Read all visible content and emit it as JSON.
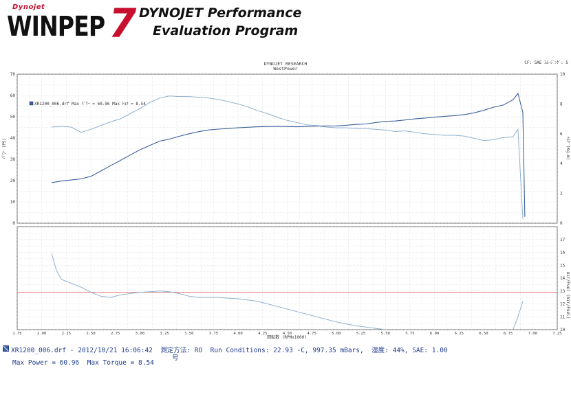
{
  "header": {
    "logo_top": "Dynojet",
    "logo_main": "WINPEP",
    "logo_number": "7",
    "title_line1": "DYNOJET Performance",
    "title_line2": "Evaluation Program"
  },
  "chart_header": {
    "title": "DYNOJET RESEARCH",
    "subtitle": "WestPower",
    "cf_label": "CF: SAE  ｽﾑｰｼﾞﾝｸﾞ: 5"
  },
  "legend": {
    "text": "XR1200_006.drf Max ﾊﾟﾜｰ = 60.96   Max ﾄﾙｸ = 8.54"
  },
  "colors": {
    "power": "#3b5f9a",
    "torque": "#8fb0d0",
    "afr": "#8fb0d0",
    "afr_target": "#e05050",
    "grid": "#d0d0d0",
    "axis": "#333333"
  },
  "chart_data": [
    {
      "type": "line",
      "title": "DYNOJET RESEARCH",
      "xlabel": "",
      "ylabel": "ﾊﾟﾜｰ (PS)",
      "y2label": "ﾄﾙｸ (Kg-m)",
      "xlim": [
        1.75,
        7.25
      ],
      "ylim": [
        0,
        70
      ],
      "y2lim": [
        0,
        10
      ],
      "yticks": [
        0,
        10,
        20,
        30,
        40,
        50,
        60,
        70
      ],
      "y2ticks": [
        0,
        2,
        4,
        6,
        8,
        10
      ],
      "grid": true,
      "legend_position": "top-left",
      "series": [
        {
          "name": "ﾊﾟﾜｰ",
          "axis": "left",
          "x": [
            2.1,
            2.2,
            2.3,
            2.4,
            2.5,
            2.6,
            2.7,
            2.8,
            2.9,
            3.0,
            3.1,
            3.2,
            3.3,
            3.4,
            3.5,
            3.6,
            3.7,
            3.8,
            3.9,
            4.0,
            4.2,
            4.4,
            4.6,
            4.8,
            5.0,
            5.1,
            5.2,
            5.3,
            5.4,
            5.5,
            5.6,
            5.7,
            5.8,
            5.9,
            6.0,
            6.1,
            6.2,
            6.3,
            6.4,
            6.5,
            6.6,
            6.7,
            6.8,
            6.85,
            6.9,
            6.92
          ],
          "values": [
            19,
            19.8,
            20.3,
            20.8,
            22,
            24.5,
            27,
            29.5,
            32,
            34.5,
            36.5,
            38.5,
            39.5,
            40.8,
            42,
            43,
            43.8,
            44.2,
            44.5,
            44.8,
            45.3,
            45.5,
            45.3,
            45.6,
            45.7,
            46,
            46.4,
            46.6,
            47.3,
            47.8,
            48,
            48.5,
            49,
            49.4,
            49.8,
            50.2,
            50.5,
            51,
            51.8,
            53,
            54.5,
            55.5,
            58,
            60.96,
            52,
            3
          ]
        },
        {
          "name": "ﾄﾙｸ",
          "axis": "right",
          "x": [
            2.1,
            2.2,
            2.3,
            2.4,
            2.5,
            2.6,
            2.7,
            2.8,
            2.9,
            3.0,
            3.1,
            3.2,
            3.3,
            3.4,
            3.5,
            3.6,
            3.7,
            3.8,
            3.9,
            4.0,
            4.1,
            4.2,
            4.3,
            4.4,
            4.5,
            4.6,
            4.7,
            4.8,
            4.9,
            5.0,
            5.1,
            5.2,
            5.3,
            5.4,
            5.5,
            5.6,
            5.7,
            5.8,
            5.9,
            6.0,
            6.1,
            6.2,
            6.3,
            6.4,
            6.5,
            6.6,
            6.7,
            6.8,
            6.85,
            6.9
          ],
          "values": [
            6.45,
            6.5,
            6.45,
            6.1,
            6.3,
            6.55,
            6.8,
            7.0,
            7.35,
            7.7,
            8.1,
            8.4,
            8.54,
            8.5,
            8.5,
            8.45,
            8.4,
            8.3,
            8.15,
            8.0,
            7.8,
            7.55,
            7.35,
            7.1,
            6.9,
            6.75,
            6.6,
            6.55,
            6.45,
            6.4,
            6.4,
            6.35,
            6.35,
            6.3,
            6.25,
            6.15,
            6.2,
            6.1,
            6.0,
            5.95,
            5.9,
            5.9,
            5.85,
            5.7,
            5.55,
            5.6,
            5.75,
            5.8,
            6.3,
            0.3
          ]
        }
      ]
    },
    {
      "type": "line",
      "xlabel": "回転数 (RPMx1000)",
      "ylabel": "Air/Fuel (Air/Fuel)",
      "xlim": [
        1.75,
        7.25
      ],
      "ylim": [
        10,
        18
      ],
      "yticks": [
        10,
        11,
        12,
        13,
        14,
        15,
        16,
        17
      ],
      "xticks": [
        "1.75",
        "2.00",
        "2.25",
        "2.50",
        "2.75",
        "3.00",
        "3.25",
        "3.50",
        "3.75",
        "4.00",
        "4.25",
        "4.50",
        "4.75",
        "5.00",
        "5.25",
        "5.50",
        "5.75",
        "6.00",
        "6.25",
        "6.50",
        "6.75",
        "7.00",
        "7.25"
      ],
      "target_afr": 12.9,
      "grid": true,
      "series": [
        {
          "name": "Air/Fuel",
          "x": [
            2.1,
            2.15,
            2.2,
            2.3,
            2.4,
            2.5,
            2.6,
            2.7,
            2.8,
            2.9,
            3.0,
            3.1,
            3.2,
            3.3,
            3.4,
            3.5,
            3.6,
            3.7,
            3.8,
            3.9,
            4.0,
            4.1,
            4.2,
            4.3,
            4.4,
            4.5,
            4.6,
            4.7,
            4.8,
            4.9,
            5.0,
            5.1,
            5.2,
            5.3,
            5.4,
            5.5,
            6.8,
            6.85,
            6.9
          ],
          "values": [
            15.9,
            14.6,
            13.9,
            13.6,
            13.3,
            12.9,
            12.6,
            12.5,
            12.7,
            12.8,
            12.9,
            12.95,
            13.0,
            12.95,
            12.8,
            12.6,
            12.5,
            12.5,
            12.5,
            12.45,
            12.4,
            12.3,
            12.2,
            12.0,
            11.8,
            11.6,
            11.4,
            11.2,
            11.0,
            10.8,
            10.6,
            10.45,
            10.3,
            10.2,
            10.1,
            10.0,
            10.0,
            11.0,
            12.2
          ]
        }
      ]
    }
  ],
  "footer": {
    "line1": "XR1200_006.drf - 2012/10/21 16:06:42  測定方法: RO  Run Conditions: 22.93 -C, 997.35 mBars,  湿度: 44%, SAE: 1.00",
    "line1_cont": "号",
    "line2": "Max Power = 60.96  Max Torque = 8.54"
  }
}
